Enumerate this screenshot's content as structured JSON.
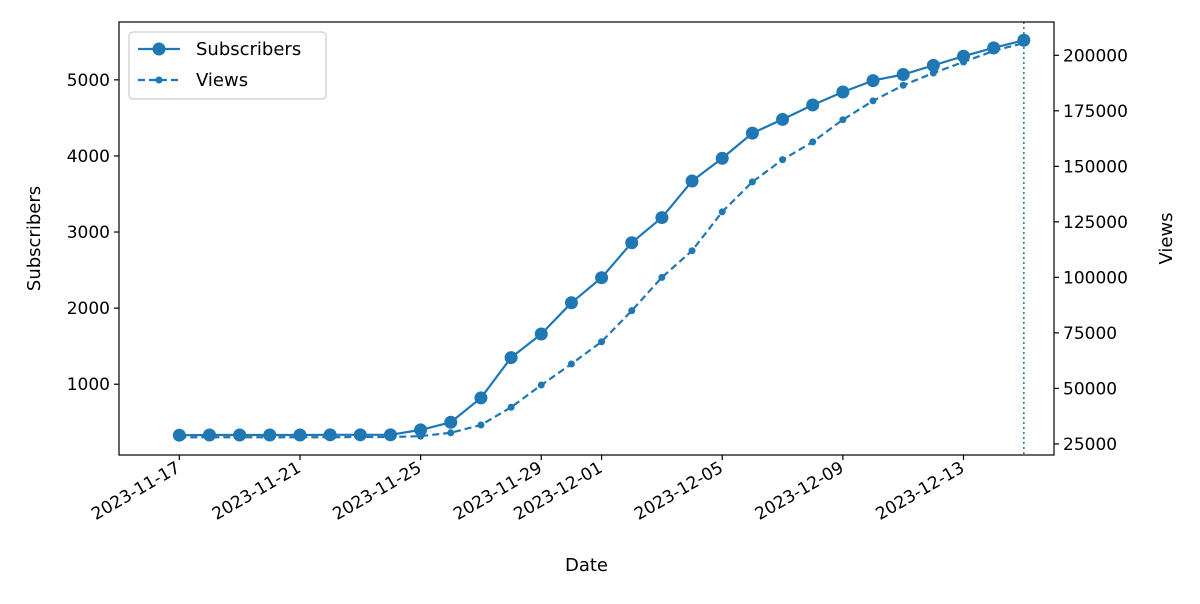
{
  "chart_data": {
    "type": "line",
    "title": "",
    "xlabel": "Date",
    "ylabel_left": "Subscribers",
    "ylabel_right": "Views",
    "x": [
      "2023-11-17",
      "2023-11-18",
      "2023-11-19",
      "2023-11-20",
      "2023-11-21",
      "2023-11-22",
      "2023-11-23",
      "2023-11-24",
      "2023-11-25",
      "2023-11-26",
      "2023-11-27",
      "2023-11-28",
      "2023-11-29",
      "2023-11-30",
      "2023-12-01",
      "2023-12-02",
      "2023-12-03",
      "2023-12-04",
      "2023-12-05",
      "2023-12-06",
      "2023-12-07",
      "2023-12-08",
      "2023-12-09",
      "2023-12-10",
      "2023-12-11",
      "2023-12-12",
      "2023-12-13",
      "2023-12-14",
      "2023-12-15"
    ],
    "x_ticks": [
      "2023-11-17",
      "2023-11-21",
      "2023-11-25",
      "2023-11-29",
      "2023-12-01",
      "2023-12-05",
      "2023-12-09",
      "2023-12-13"
    ],
    "xlim": [
      "2023-11-15",
      "2023-12-16"
    ],
    "series": [
      {
        "name": "Subscribers",
        "axis": "left",
        "style": "solid",
        "marker": "circle",
        "color": "#1f77b4",
        "values": [
          330,
          333,
          333,
          333,
          333,
          335,
          335,
          335,
          400,
          500,
          820,
          1350,
          1660,
          2070,
          2400,
          2860,
          3190,
          3670,
          3970,
          4300,
          4480,
          4670,
          4840,
          4990,
          5070,
          5190,
          5310,
          5420,
          5520
        ]
      },
      {
        "name": "Views",
        "axis": "right",
        "style": "dashed",
        "marker": "dot",
        "color": "#1f77b4",
        "values": [
          28000,
          28000,
          28000,
          28000,
          28000,
          28000,
          28100,
          28100,
          28500,
          30000,
          33500,
          41500,
          51500,
          61000,
          71000,
          85000,
          100000,
          112000,
          129500,
          143000,
          153000,
          161000,
          171000,
          179500,
          186500,
          192000,
          197000,
          202000,
          205500
        ]
      }
    ],
    "ylim_left": [
      70,
      5760
    ],
    "yticks_left": [
      1000,
      2000,
      3000,
      4000,
      5000
    ],
    "ylim_right": [
      20000,
      215000
    ],
    "yticks_right": [
      25000,
      50000,
      75000,
      100000,
      125000,
      150000,
      175000,
      200000
    ],
    "vline": {
      "x": "2023-12-15",
      "style": "dotted",
      "color": "#1f77b4"
    },
    "legend": {
      "position": "upper-left",
      "entries": [
        "Subscribers",
        "Views"
      ]
    },
    "grid": false
  }
}
